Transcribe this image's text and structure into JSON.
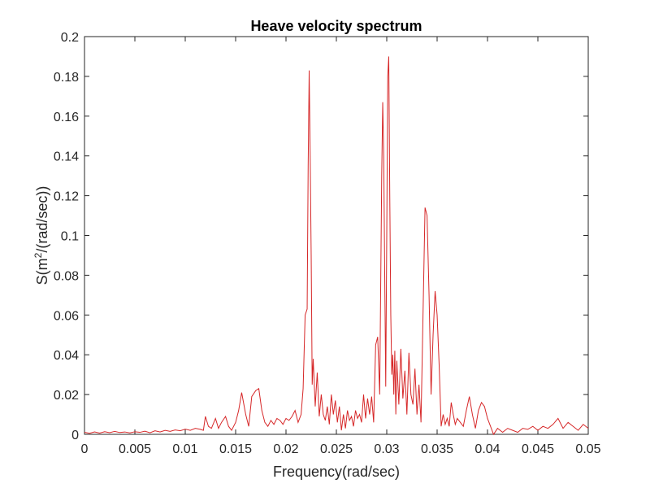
{
  "chart_data": {
    "type": "line",
    "title": "Heave velocity spectrum",
    "xlabel": "Frequency(rad/sec)",
    "ylabel_prefix": "S(m",
    "ylabel_sup": "2",
    "ylabel_suffix": "/(rad/sec))",
    "xlim": [
      0,
      0.05
    ],
    "ylim": [
      0,
      0.2
    ],
    "xticks": [
      0,
      0.005,
      0.01,
      0.015,
      0.02,
      0.025,
      0.03,
      0.035,
      0.04,
      0.045,
      0.05
    ],
    "xtick_labels": [
      "0",
      "0.005",
      "0.01",
      "0.015",
      "0.02",
      "0.025",
      "0.03",
      "0.035",
      "0.04",
      "0.045",
      "0.05"
    ],
    "yticks": [
      0,
      0.02,
      0.04,
      0.06,
      0.08,
      0.1,
      0.12,
      0.14,
      0.16,
      0.18,
      0.2
    ],
    "ytick_labels": [
      "0",
      "0.02",
      "0.04",
      "0.06",
      "0.08",
      "0.1",
      "0.12",
      "0.14",
      "0.16",
      "0.18",
      "0.2"
    ],
    "grid": false,
    "series_color": "#d62728",
    "series": [
      {
        "x": [
          0,
          0.0005,
          0.001,
          0.0015,
          0.002,
          0.0025,
          0.003,
          0.0035,
          0.004,
          0.0045,
          0.005,
          0.0055,
          0.006,
          0.0065,
          0.007,
          0.0075,
          0.008,
          0.0085,
          0.009,
          0.0095,
          0.01,
          0.0105,
          0.011,
          0.0115,
          0.0118,
          0.012,
          0.0123,
          0.0126,
          0.013,
          0.0133,
          0.0136,
          0.014,
          0.0143,
          0.0146,
          0.015,
          0.0153,
          0.0156,
          0.016,
          0.0163,
          0.0166,
          0.017,
          0.0173,
          0.0176,
          0.0179,
          0.0182,
          0.0185,
          0.0188,
          0.0191,
          0.0194,
          0.0197,
          0.02,
          0.0203,
          0.0206,
          0.0209,
          0.0212,
          0.0215,
          0.0217,
          0.0219,
          0.0221,
          0.0222,
          0.0223,
          0.0224,
          0.0225,
          0.0226,
          0.0227,
          0.0229,
          0.0231,
          0.0233,
          0.0235,
          0.0237,
          0.0239,
          0.0241,
          0.0243,
          0.0245,
          0.0247,
          0.0249,
          0.0251,
          0.0253,
          0.0255,
          0.0257,
          0.0259,
          0.0261,
          0.0263,
          0.0265,
          0.0267,
          0.0269,
          0.0271,
          0.0273,
          0.0275,
          0.0277,
          0.0279,
          0.0281,
          0.0283,
          0.0285,
          0.0287,
          0.0289,
          0.0291,
          0.0293,
          0.0295,
          0.0296,
          0.0297,
          0.0298,
          0.0299,
          0.03,
          0.0301,
          0.0302,
          0.0303,
          0.0304,
          0.0305,
          0.0306,
          0.0307,
          0.0308,
          0.0309,
          0.031,
          0.0312,
          0.0314,
          0.0316,
          0.0318,
          0.032,
          0.0322,
          0.0324,
          0.0326,
          0.0328,
          0.033,
          0.0332,
          0.0334,
          0.0336,
          0.0338,
          0.034,
          0.0342,
          0.0344,
          0.0346,
          0.0348,
          0.035,
          0.0352,
          0.0354,
          0.0356,
          0.0358,
          0.036,
          0.0362,
          0.0364,
          0.0366,
          0.0368,
          0.037,
          0.0373,
          0.0376,
          0.0379,
          0.0382,
          0.0385,
          0.0388,
          0.0391,
          0.0394,
          0.0397,
          0.04,
          0.0403,
          0.0406,
          0.041,
          0.0415,
          0.042,
          0.0425,
          0.043,
          0.0435,
          0.044,
          0.0445,
          0.045,
          0.0455,
          0.046,
          0.0465,
          0.047,
          0.0475,
          0.048,
          0.0485,
          0.049,
          0.0495,
          0.05
        ],
        "y": [
          0.001,
          0.0005,
          0.0012,
          0.0006,
          0.0013,
          0.0008,
          0.0015,
          0.0009,
          0.0012,
          0.0007,
          0.0013,
          0.001,
          0.0016,
          0.0008,
          0.0018,
          0.0012,
          0.002,
          0.0015,
          0.0022,
          0.0018,
          0.0026,
          0.002,
          0.003,
          0.0025,
          0.002,
          0.009,
          0.004,
          0.003,
          0.008,
          0.003,
          0.006,
          0.009,
          0.004,
          0.002,
          0.006,
          0.012,
          0.021,
          0.01,
          0.004,
          0.019,
          0.022,
          0.023,
          0.012,
          0.006,
          0.004,
          0.007,
          0.005,
          0.008,
          0.007,
          0.005,
          0.008,
          0.007,
          0.009,
          0.012,
          0.006,
          0.01,
          0.023,
          0.06,
          0.063,
          0.135,
          0.183,
          0.14,
          0.09,
          0.025,
          0.038,
          0.014,
          0.031,
          0.009,
          0.02,
          0.01,
          0.007,
          0.014,
          0.005,
          0.02,
          0.01,
          0.017,
          0.006,
          0.014,
          0.002,
          0.01,
          0.003,
          0.012,
          0.007,
          0.009,
          0.004,
          0.012,
          0.008,
          0.01,
          0.006,
          0.02,
          0.008,
          0.018,
          0.01,
          0.019,
          0.006,
          0.045,
          0.049,
          0.02,
          0.13,
          0.167,
          0.14,
          0.08,
          0.024,
          0.1,
          0.18,
          0.19,
          0.12,
          0.06,
          0.03,
          0.04,
          0.02,
          0.042,
          0.01,
          0.037,
          0.015,
          0.043,
          0.018,
          0.032,
          0.01,
          0.041,
          0.02,
          0.015,
          0.033,
          0.01,
          0.025,
          0.006,
          0.06,
          0.114,
          0.11,
          0.07,
          0.02,
          0.05,
          0.072,
          0.06,
          0.035,
          0.004,
          0.01,
          0.005,
          0.008,
          0.004,
          0.016,
          0.01,
          0.005,
          0.008,
          0.006,
          0.004,
          0.012,
          0.019,
          0.01,
          0.003,
          0.012,
          0.016,
          0.014,
          0.008,
          0.004,
          0.0,
          0.003,
          0.001,
          0.003,
          0.002,
          0.001,
          0.003,
          0.0025,
          0.004,
          0.002,
          0.004,
          0.003,
          0.005,
          0.008,
          0.003,
          0.006,
          0.004,
          0.002,
          0.005,
          0.003
        ]
      }
    ]
  }
}
